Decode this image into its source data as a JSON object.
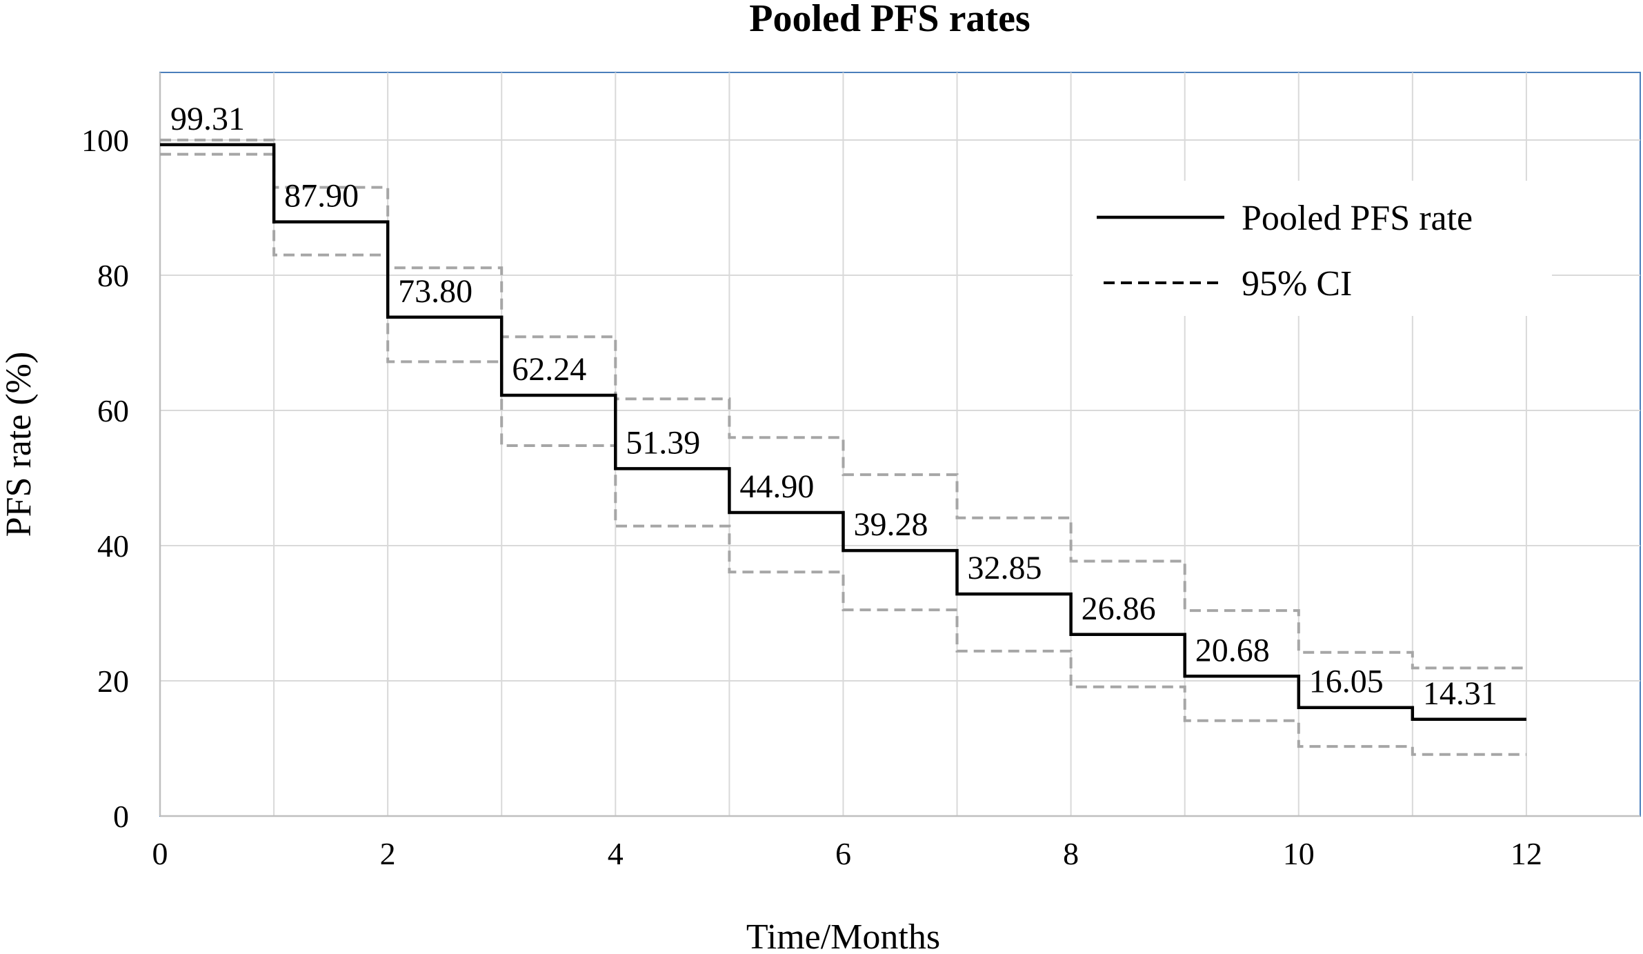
{
  "chart_data": {
    "type": "line",
    "title": "Pooled PFS rates",
    "xlabel": "Time/Months",
    "ylabel": "PFS rate (%)",
    "xlim": [
      0,
      13
    ],
    "ylim": [
      0,
      110
    ],
    "x_ticks": [
      0,
      2,
      4,
      6,
      8,
      10,
      12
    ],
    "y_ticks": [
      0,
      20,
      40,
      60,
      80,
      100
    ],
    "x_grid": [
      0,
      1,
      2,
      3,
      4,
      5,
      6,
      7,
      8,
      9,
      10,
      11,
      12,
      13
    ],
    "grid": true,
    "step": true,
    "legend_position": "top-right",
    "series": [
      {
        "name": "Pooled PFS rate",
        "style": "solid",
        "color": "#000000",
        "x": [
          0,
          1,
          2,
          3,
          4,
          5,
          6,
          7,
          8,
          9,
          10,
          11
        ],
        "values": [
          99.31,
          87.9,
          73.8,
          62.24,
          51.39,
          44.9,
          39.28,
          32.85,
          26.86,
          20.68,
          16.05,
          14.31
        ],
        "labels": [
          "99.31",
          "87.90",
          "73.80",
          "62.24",
          "51.39",
          "44.90",
          "39.28",
          "32.85",
          "26.86",
          "20.68",
          "16.05",
          "14.31"
        ]
      },
      {
        "name": "95% CI",
        "style": "dashed",
        "color": "#a6a6a6",
        "upper": [
          100,
          93,
          81.1,
          70.9,
          61.7,
          56,
          50.5,
          44.1,
          37.7,
          30.4,
          24.2,
          21.9
        ],
        "lower": [
          97.9,
          83,
          67.2,
          54.8,
          42.9,
          36.1,
          30.5,
          24.4,
          19.1,
          14.1,
          10.3,
          9.1
        ]
      }
    ],
    "colors": {
      "grid": "#d9d9d9",
      "axis": "#bfbfbf",
      "frame": "#4a7ebb",
      "ci": "#a6a6a6",
      "line": "#000000"
    }
  }
}
